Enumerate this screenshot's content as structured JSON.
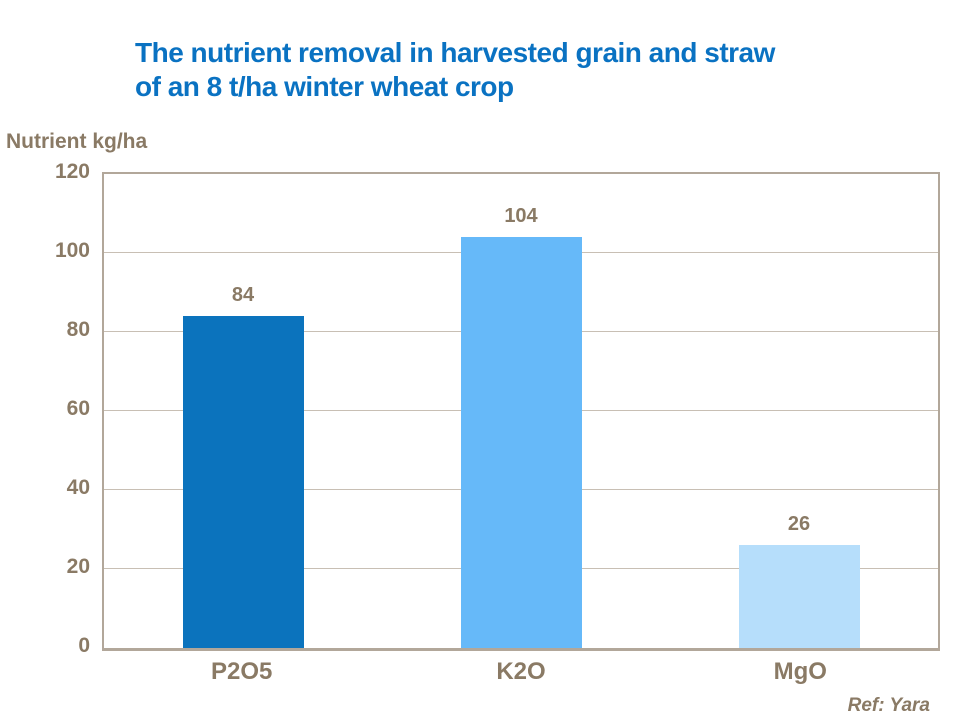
{
  "page": {
    "background_color": "#ffffff"
  },
  "title": {
    "line1": "The nutrient removal in harvested grain and straw",
    "line2": "of an 8 t/ha winter wheat crop",
    "color": "#0a72c2"
  },
  "axis_unit_label": "Nutrient kg/ha",
  "ref_note": "Ref: Yara",
  "colors": {
    "title_blue": "#0a72c2",
    "text_brown": "#8a7a65",
    "plot_border": "#b2a79a",
    "gridline": "#c8bfb4"
  },
  "chart_data": {
    "type": "bar",
    "title": "The nutrient removal in harvested grain and straw of an 8 t/ha winter wheat crop",
    "categories": [
      "P2O5",
      "K2O",
      "MgO"
    ],
    "values": [
      84,
      104,
      26
    ],
    "data_labels": [
      "84",
      "104",
      "26"
    ],
    "bar_colors": [
      "#0b73bd",
      "#66b9f9",
      "#b6defb"
    ],
    "xlabel": "",
    "ylabel": "Nutrient kg/ha",
    "ylim": [
      0,
      120
    ],
    "ytick_step": 20,
    "ytick_labels": [
      "0",
      "20",
      "40",
      "60",
      "80",
      "100",
      "120"
    ],
    "grid": true,
    "legend": false
  }
}
